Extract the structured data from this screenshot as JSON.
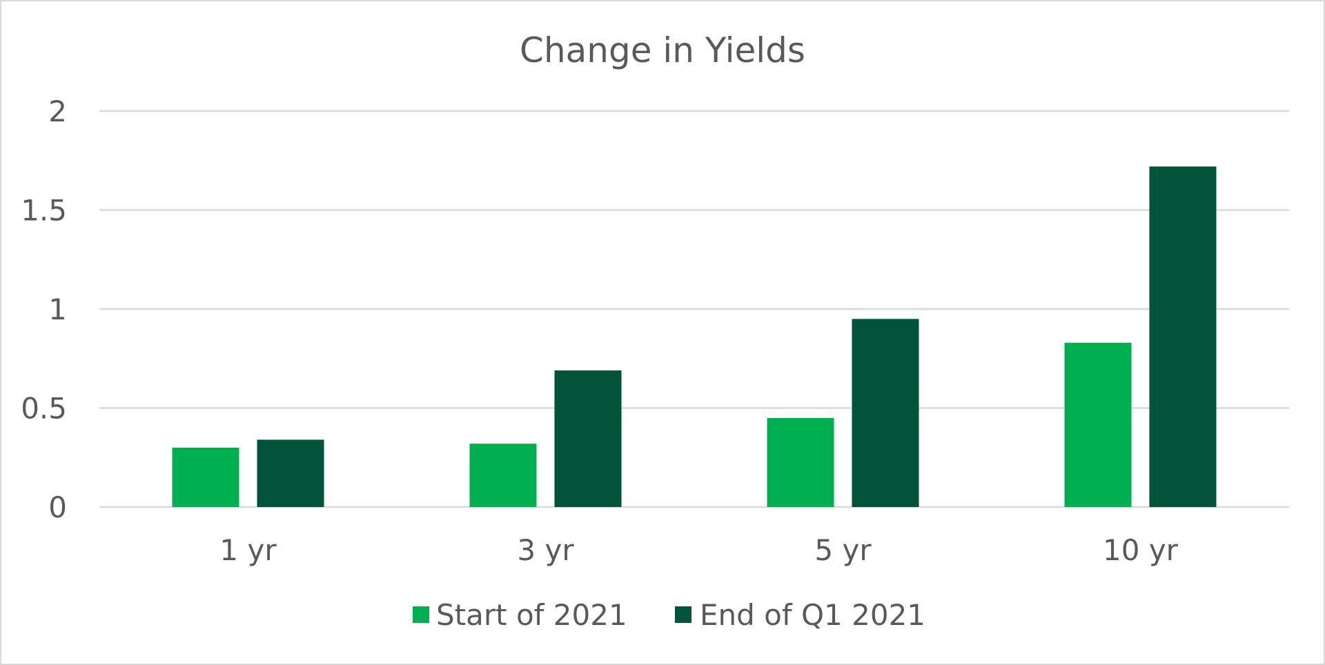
{
  "chart_data": {
    "type": "bar",
    "title": "Change in Yields",
    "xlabel": "",
    "ylabel": "",
    "categories": [
      "1 yr",
      "3 yr",
      "5 yr",
      "10 yr"
    ],
    "series": [
      {
        "name": "Start of 2021",
        "values": [
          0.3,
          0.32,
          0.45,
          0.83
        ],
        "color": "#00b050"
      },
      {
        "name": "End of Q1 2021",
        "values": [
          0.34,
          0.69,
          0.95,
          1.72
        ],
        "color": "#00533a"
      }
    ],
    "ylim": [
      0,
      2
    ],
    "yticks": [
      "0",
      "0.5",
      "1",
      "1.5",
      "2"
    ],
    "ytick_values": [
      0,
      0.5,
      1,
      1.5,
      2
    ],
    "grid": true,
    "legend": "bottom-center",
    "colors": {
      "text": "#595959",
      "grid": "#d9d9d9",
      "border": "#d9d9d9"
    }
  }
}
